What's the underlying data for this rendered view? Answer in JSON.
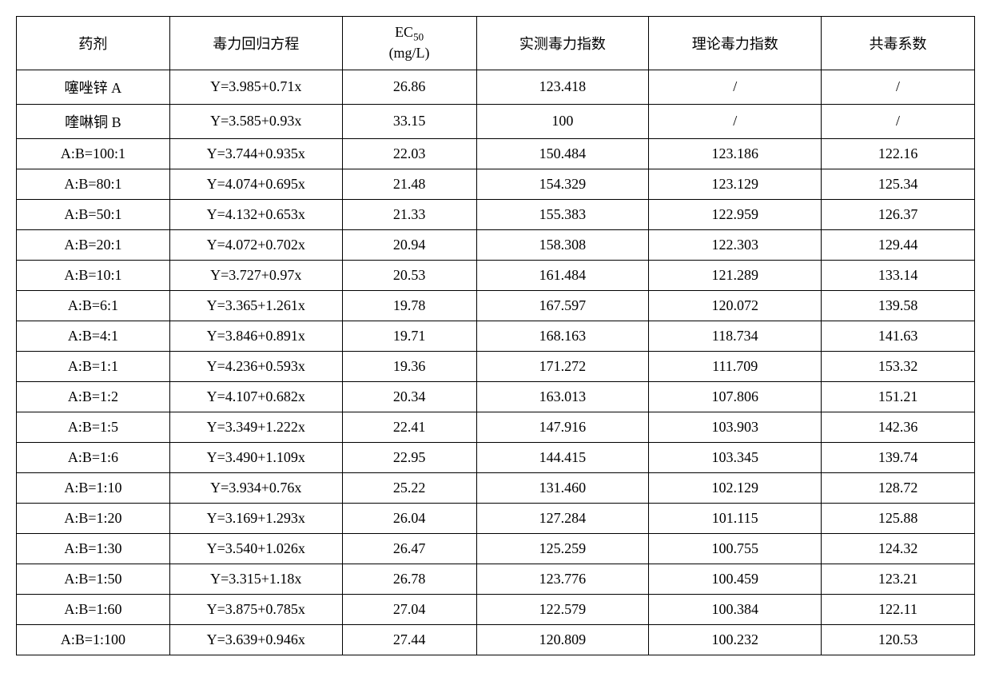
{
  "table": {
    "columns": [
      "药剂",
      "毒力回归方程",
      "EC",
      "实测毒力指数",
      "理论毒力指数",
      "共毒系数"
    ],
    "ec50_sub": "50",
    "ec50_unit": "(mg/L)",
    "rows": [
      [
        "噻唑锌 A",
        "Y=3.985+0.71x",
        "26.86",
        "123.418",
        "/",
        "/"
      ],
      [
        "喹啉铜 B",
        "Y=3.585+0.93x",
        "33.15",
        "100",
        "/",
        "/"
      ],
      [
        "A:B=100:1",
        "Y=3.744+0.935x",
        "22.03",
        "150.484",
        "123.186",
        "122.16"
      ],
      [
        "A:B=80:1",
        "Y=4.074+0.695x",
        "21.48",
        "154.329",
        "123.129",
        "125.34"
      ],
      [
        "A:B=50:1",
        "Y=4.132+0.653x",
        "21.33",
        "155.383",
        "122.959",
        "126.37"
      ],
      [
        "A:B=20:1",
        "Y=4.072+0.702x",
        "20.94",
        "158.308",
        "122.303",
        "129.44"
      ],
      [
        "A:B=10:1",
        "Y=3.727+0.97x",
        "20.53",
        "161.484",
        "121.289",
        "133.14"
      ],
      [
        "A:B=6:1",
        "Y=3.365+1.261x",
        "19.78",
        "167.597",
        "120.072",
        "139.58"
      ],
      [
        "A:B=4:1",
        "Y=3.846+0.891x",
        "19.71",
        "168.163",
        "118.734",
        "141.63"
      ],
      [
        "A:B=1:1",
        "Y=4.236+0.593x",
        "19.36",
        "171.272",
        "111.709",
        "153.32"
      ],
      [
        "A:B=1:2",
        "Y=4.107+0.682x",
        "20.34",
        "163.013",
        "107.806",
        "151.21"
      ],
      [
        "A:B=1:5",
        "Y=3.349+1.222x",
        "22.41",
        "147.916",
        "103.903",
        "142.36"
      ],
      [
        "A:B=1:6",
        "Y=3.490+1.109x",
        "22.95",
        "144.415",
        "103.345",
        "139.74"
      ],
      [
        "A:B=1:10",
        "Y=3.934+0.76x",
        "25.22",
        "131.460",
        "102.129",
        "128.72"
      ],
      [
        "A:B=1:20",
        "Y=3.169+1.293x",
        "26.04",
        "127.284",
        "101.115",
        "125.88"
      ],
      [
        "A:B=1:30",
        "Y=3.540+1.026x",
        "26.47",
        "125.259",
        "100.755",
        "124.32"
      ],
      [
        "A:B=1:50",
        "Y=3.315+1.18x",
        "26.78",
        "123.776",
        "100.459",
        "123.21"
      ],
      [
        "A:B=1:60",
        "Y=3.875+0.785x",
        "27.04",
        "122.579",
        "100.384",
        "122.11"
      ],
      [
        "A:B=1:100",
        "Y=3.639+0.946x",
        "27.44",
        "120.809",
        "100.232",
        "120.53"
      ]
    ],
    "border_color": "#000000",
    "background_color": "#ffffff",
    "text_color": "#000000",
    "font_size": 18,
    "font_family": "SimSun"
  }
}
